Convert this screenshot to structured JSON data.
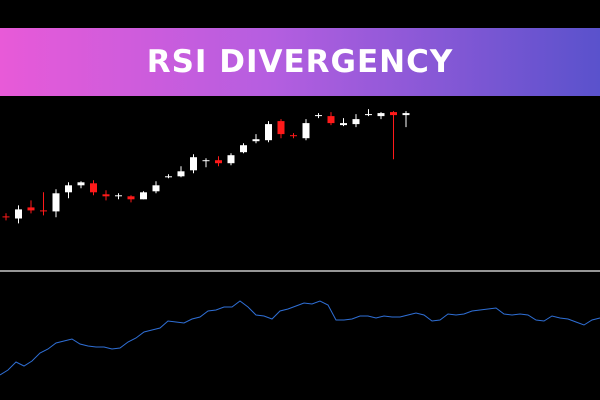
{
  "banner": {
    "title": "RSI DIVERGENCY"
  },
  "colors": {
    "background": "#000000",
    "bull_candle": "#ffffff",
    "bear_candle": "#ff1a1a",
    "rsi_line": "#2f6fd6",
    "separator": "#c8c8c8",
    "banner_gradient": [
      "#e85ad8",
      "#b55ee0",
      "#5a52cc"
    ]
  },
  "chart_data": {
    "type": "candlestick",
    "title": "",
    "price_panel": {
      "candles": [
        {
          "o": 48.6,
          "h": 51.7,
          "l": 44.6,
          "c": 47.7,
          "color": "bear"
        },
        {
          "o": 46.5,
          "h": 59.6,
          "l": 41.6,
          "c": 55.6,
          "color": "bull"
        },
        {
          "o": 57.6,
          "h": 64.6,
          "l": 51.6,
          "c": 54.6,
          "color": "bear"
        },
        {
          "o": 54.6,
          "h": 72.7,
          "l": 49.6,
          "c": 53.6,
          "color": "bear"
        },
        {
          "o": 53.6,
          "h": 75.7,
          "l": 47.7,
          "c": 71.7,
          "color": "bull"
        },
        {
          "o": 72.7,
          "h": 82.7,
          "l": 66.7,
          "c": 79.7,
          "color": "bull"
        },
        {
          "o": 79.7,
          "h": 83.7,
          "l": 76.7,
          "c": 82.7,
          "color": "bull"
        },
        {
          "o": 81.7,
          "h": 84.7,
          "l": 69.7,
          "c": 72.7,
          "color": "bear"
        },
        {
          "o": 70.7,
          "h": 74.7,
          "l": 64.6,
          "c": 68.7,
          "color": "bear"
        },
        {
          "o": 68.7,
          "h": 71.7,
          "l": 65.7,
          "c": 69.7,
          "color": "bull"
        },
        {
          "o": 68.7,
          "h": 69.7,
          "l": 62.6,
          "c": 65.7,
          "color": "bear"
        },
        {
          "o": 65.7,
          "h": 73.7,
          "l": 65.7,
          "c": 72.7,
          "color": "bull"
        },
        {
          "o": 73.7,
          "h": 83.7,
          "l": 71.7,
          "c": 79.7,
          "color": "bull"
        },
        {
          "o": 88.7,
          "h": 90.7,
          "l": 86.7,
          "c": 88.7,
          "color": "bull"
        },
        {
          "o": 88.7,
          "h": 98.7,
          "l": 87.7,
          "c": 93.7,
          "color": "bull"
        },
        {
          "o": 94.7,
          "h": 110.8,
          "l": 91.7,
          "c": 107.8,
          "color": "bull"
        },
        {
          "o": 103.8,
          "h": 106.8,
          "l": 97.7,
          "c": 104.8,
          "color": "bull"
        },
        {
          "o": 104.8,
          "h": 108.8,
          "l": 98.7,
          "c": 101.8,
          "color": "bear"
        },
        {
          "o": 101.8,
          "h": 111.8,
          "l": 99.7,
          "c": 109.8,
          "color": "bull"
        },
        {
          "o": 112.8,
          "h": 121.8,
          "l": 111.8,
          "c": 119.8,
          "color": "bull"
        },
        {
          "o": 123.8,
          "h": 130.9,
          "l": 121.8,
          "c": 125.8,
          "color": "bull"
        },
        {
          "o": 124.8,
          "h": 143.9,
          "l": 122.8,
          "c": 140.9,
          "color": "bull"
        },
        {
          "o": 143.9,
          "h": 145.9,
          "l": 126.8,
          "c": 130.9,
          "color": "bear"
        },
        {
          "o": 129.8,
          "h": 131.9,
          "l": 126.8,
          "c": 128.8,
          "color": "bear"
        },
        {
          "o": 126.8,
          "h": 145.9,
          "l": 124.8,
          "c": 141.9,
          "color": "bull"
        },
        {
          "o": 148.9,
          "h": 151.9,
          "l": 146.9,
          "c": 149.9,
          "color": "bull"
        },
        {
          "o": 148.9,
          "h": 152.9,
          "l": 139.9,
          "c": 141.9,
          "color": "bear"
        },
        {
          "o": 139.9,
          "h": 146.9,
          "l": 138.9,
          "c": 141.9,
          "color": "bull"
        },
        {
          "o": 140.9,
          "h": 150.9,
          "l": 137.9,
          "c": 145.9,
          "color": "bull"
        },
        {
          "o": 150.9,
          "h": 155.9,
          "l": 148.9,
          "c": 150.9,
          "color": "bull"
        },
        {
          "o": 151.9,
          "h": 152.9,
          "l": 145.9,
          "c": 148.9,
          "color": "bull"
        },
        {
          "o": 152.9,
          "h": 153.9,
          "l": 105.8,
          "c": 149.9,
          "color": "bear"
        },
        {
          "o": 151.9,
          "h": 153.9,
          "l": 137.9,
          "c": 149.9,
          "color": "bull"
        }
      ]
    },
    "rsi_panel": {
      "x": [
        0,
        8,
        16,
        24,
        32,
        40,
        48,
        56,
        64,
        72,
        80,
        88,
        96,
        104,
        112,
        120,
        128,
        136,
        144,
        152,
        160,
        168,
        176,
        184,
        192,
        200,
        208,
        216,
        224,
        232,
        240,
        248,
        256,
        264,
        272,
        280,
        288,
        296,
        304,
        312,
        320,
        328,
        336,
        344,
        352,
        360,
        368,
        376,
        384,
        392,
        400,
        408,
        416,
        424,
        432,
        440,
        448,
        456,
        464,
        472,
        480,
        488,
        496,
        504,
        512,
        520,
        528,
        536,
        544,
        552,
        560,
        568,
        576,
        584,
        592,
        600
      ],
      "values": [
        6,
        11,
        19,
        15,
        20,
        28,
        32,
        38,
        40,
        42,
        37,
        35,
        34,
        34,
        32,
        33,
        39,
        43,
        49,
        51,
        53,
        60,
        59,
        58,
        62,
        64,
        70,
        71,
        74,
        74,
        80,
        74,
        66,
        65,
        62,
        70,
        72,
        75,
        78,
        77,
        80,
        76,
        61,
        61,
        62,
        65,
        65,
        63,
        65,
        64,
        64,
        66,
        68,
        66,
        60,
        61,
        67,
        66,
        67,
        70,
        71,
        72,
        73,
        67,
        66,
        67,
        66,
        61,
        60,
        65,
        63,
        62,
        59,
        56,
        61,
        63
      ]
    }
  }
}
